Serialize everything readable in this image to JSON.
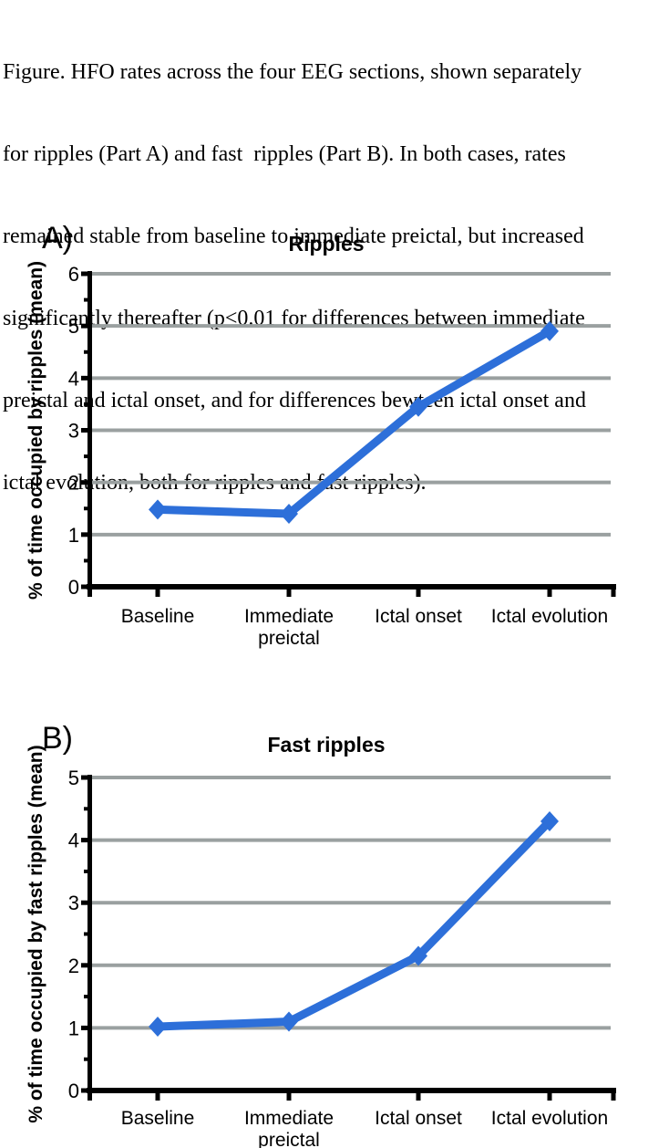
{
  "caption_lines": [
    "Figure. HFO rates across the four EEG sections, shown separately",
    "for ripples (Part A) and fast  ripples (Part B). In both cases, rates",
    "remained stable from baseline to immediate preictal, but increased",
    "significantly thereafter (p<0.01 for differences between immediate",
    "preictal and ictal onset, and for differences bewteen ictal onset and",
    "ictal evolution, both for ripples and fast ripples)."
  ],
  "colors": {
    "line_blue": "#2d6fd9",
    "gridline_gray": "#9aa0a0",
    "axis_black": "#000000",
    "background": "#ffffff"
  },
  "chart_data": [
    {
      "type": "line",
      "panel_label": "A)",
      "title": "Ripples",
      "xlabel": "",
      "ylabel": "% of time occupied by ripples (mean)",
      "categories": [
        "Baseline",
        "Immediate preictal",
        "Ictal onset",
        "Ictal evolution"
      ],
      "category_label_lines": [
        [
          "Baseline"
        ],
        [
          "Immediate",
          "preictal"
        ],
        [
          "Ictal onset"
        ],
        [
          "Ictal evolution"
        ]
      ],
      "values": [
        1.48,
        1.4,
        3.45,
        4.9
      ],
      "ylim": [
        0,
        6
      ],
      "ytick_step": 1,
      "yminortick_step": 0.5,
      "grid": "horizontal-major",
      "legend": "none",
      "marker": "diamond"
    },
    {
      "type": "line",
      "panel_label": "B)",
      "title": "Fast ripples",
      "xlabel": "",
      "ylabel": "% of time occupied by fast ripples (mean)",
      "categories": [
        "Baseline",
        "Immediate preictal",
        "Ictal onset",
        "Ictal evolution"
      ],
      "category_label_lines": [
        [
          "Baseline"
        ],
        [
          "Immediate",
          "preictal"
        ],
        [
          "Ictal onset"
        ],
        [
          "Ictal evolution"
        ]
      ],
      "values": [
        1.02,
        1.1,
        2.15,
        4.3
      ],
      "ylim": [
        0,
        5
      ],
      "ytick_step": 1,
      "yminortick_step": 0.5,
      "grid": "horizontal-major",
      "legend": "none",
      "marker": "diamond"
    }
  ]
}
